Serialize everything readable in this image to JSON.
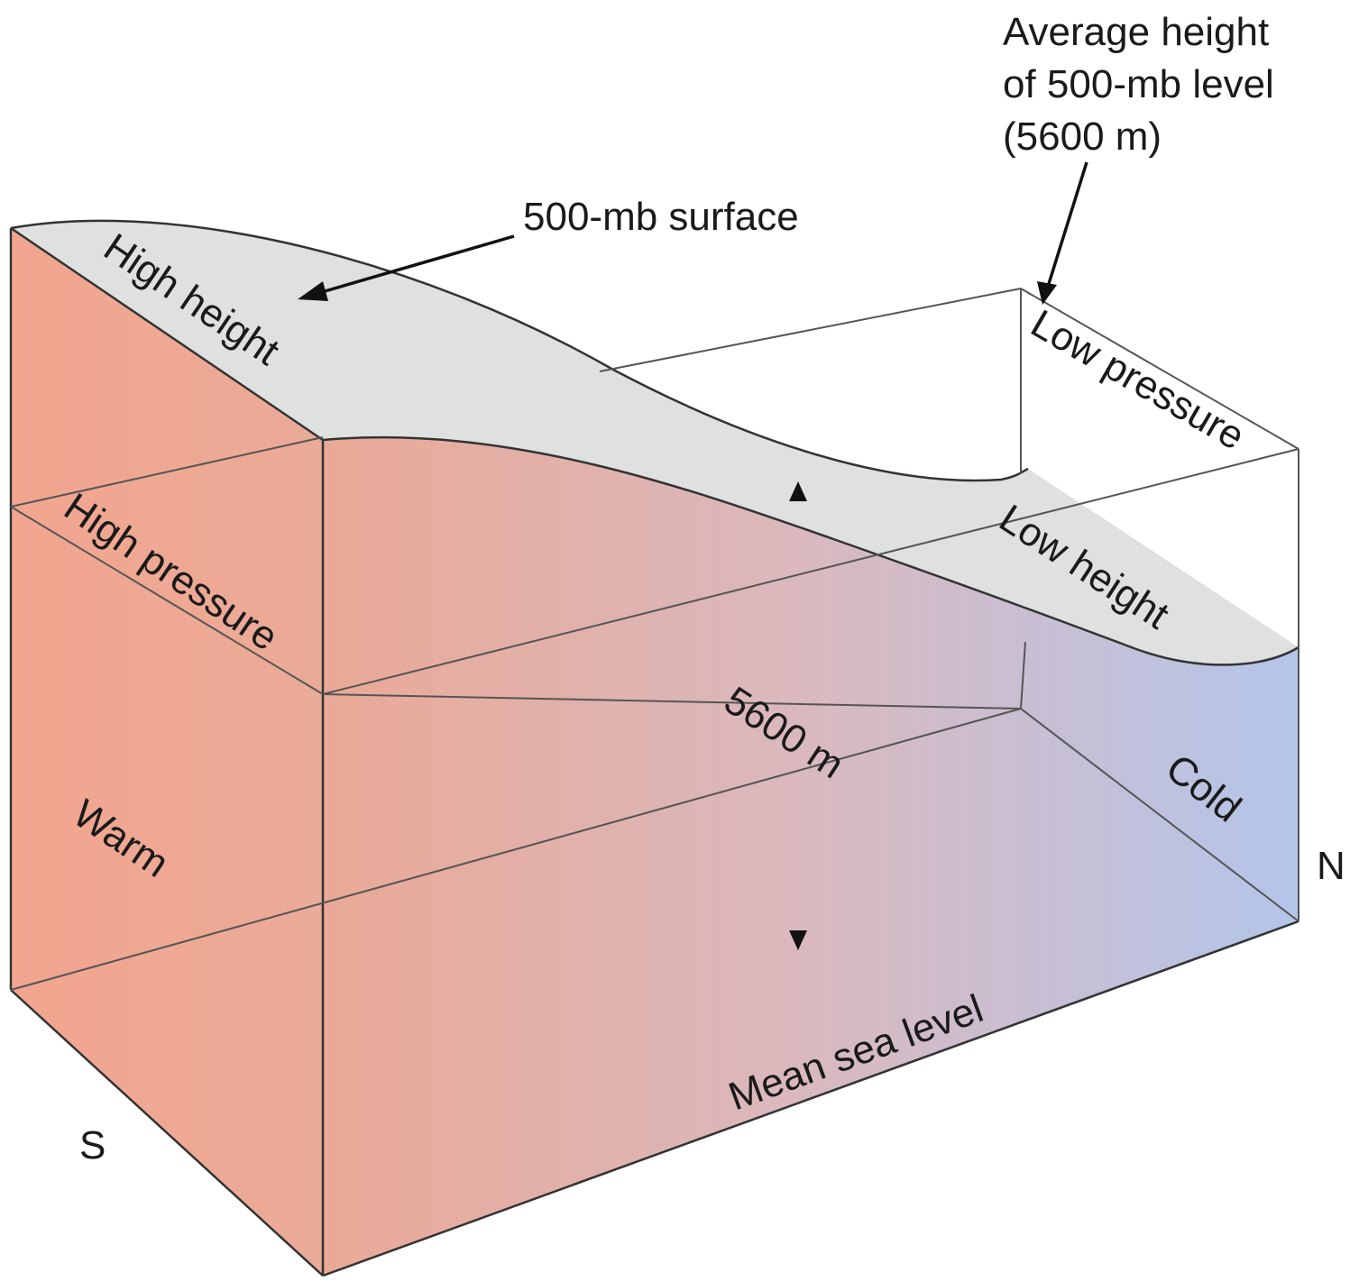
{
  "diagram": {
    "labels": {
      "average_height": [
        "Average height",
        "of 500-mb level",
        "(5600 m)"
      ],
      "surface": "500-mb surface",
      "high_height": "High height",
      "low_pressure": "Low pressure",
      "high_pressure": "High pressure",
      "low_height": "Low height",
      "reference_height": "5600 m",
      "warm": "Warm",
      "cold": "Cold",
      "north": "N",
      "south": "S",
      "sea_level": "Mean sea level"
    },
    "colors": {
      "warm": "#f2a58f",
      "cool": "#b4c5ea",
      "surface": "#dfe0e0",
      "lines": "#333333"
    }
  }
}
